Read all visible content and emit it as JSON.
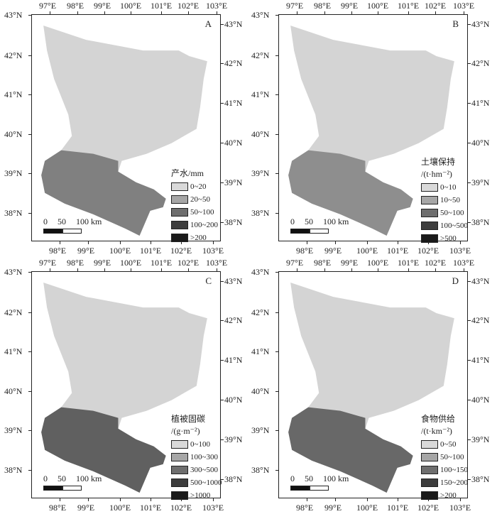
{
  "panels": [
    {
      "letter": "A",
      "legend_title": [
        "产水/mm"
      ],
      "legend_items": [
        "0~20",
        "20~50",
        "50~100",
        "100~200",
        ">200"
      ],
      "dark_level": 0.55
    },
    {
      "letter": "B",
      "legend_title": [
        "土壤保持",
        "/(t·hm⁻²)"
      ],
      "legend_items": [
        "0~10",
        "10~50",
        "50~100",
        "100~500",
        ">500"
      ],
      "dark_level": 0.45
    },
    {
      "letter": "C",
      "legend_title": [
        "植被固碳",
        "/(g·m⁻²)"
      ],
      "legend_items": [
        "0~100",
        "100~300",
        "300~500",
        "500~1000",
        ">1000"
      ],
      "dark_level": 0.75
    },
    {
      "letter": "D",
      "legend_title": [
        "食物供给",
        "/(t·km⁻²)"
      ],
      "legend_items": [
        "0~50",
        "50~100",
        "100~150",
        "150~200",
        ">200"
      ],
      "dark_level": 0.7
    }
  ],
  "legend_colors": [
    "#d9d9d9",
    "#a6a6a6",
    "#6e6e6e",
    "#3d3d3d",
    "#1a1a1a"
  ],
  "region_color": "#d4d4d4",
  "axes": {
    "top_lon": [
      "97°E",
      "98°E",
      "99°E",
      "100°E",
      "101°E",
      "102°E",
      "103°E"
    ],
    "bottom_lon": [
      "98°E",
      "99°E",
      "100°E",
      "101°E",
      "102°E",
      "103°E"
    ],
    "left_lat": [
      "43°N",
      "42°N",
      "41°N",
      "40°N",
      "39°N",
      "38°N"
    ],
    "right_lat": [
      "43°N",
      "42°N",
      "41°N",
      "40°N",
      "39°N",
      "38°N"
    ]
  },
  "scale_bar": {
    "labels": [
      "0",
      "50",
      "100 km"
    ]
  }
}
